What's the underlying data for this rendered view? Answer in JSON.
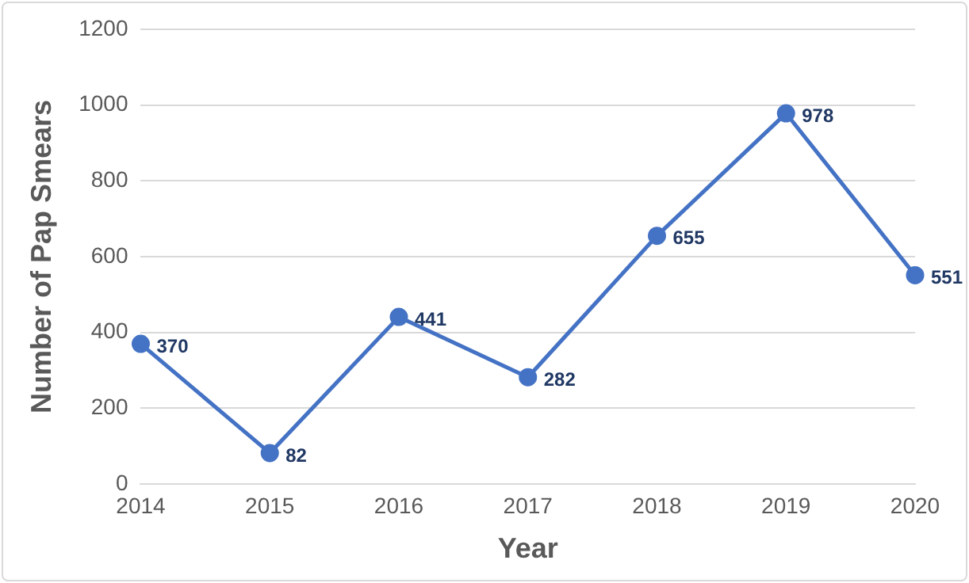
{
  "chart_data": {
    "type": "line",
    "xlabel": "Year",
    "ylabel": "Number of Pap Smears",
    "categories": [
      "2014",
      "2015",
      "2016",
      "2017",
      "2018",
      "2019",
      "2020"
    ],
    "series": [
      {
        "color": "#4472c4",
        "values": [
          370,
          82,
          441,
          282,
          655,
          978,
          551
        ]
      }
    ],
    "ylim": [
      0,
      1200
    ],
    "yticks": [
      0,
      200,
      400,
      600,
      800,
      1000,
      1200
    ],
    "grid": "y",
    "legend": false,
    "marker": "circle",
    "line_style": "solid",
    "data_labels": true
  }
}
